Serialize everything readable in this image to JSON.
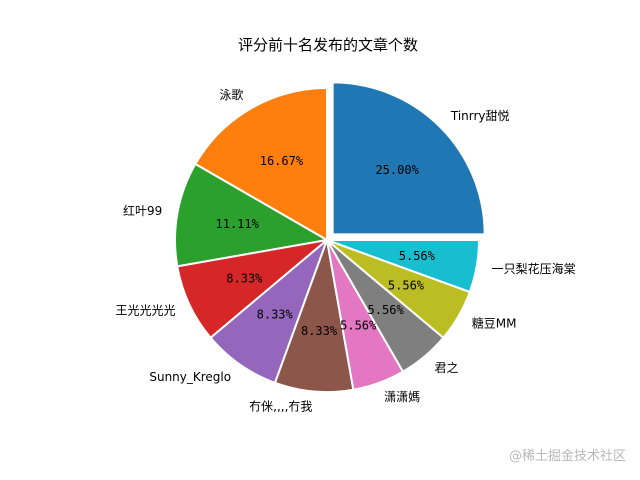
{
  "chart_data": {
    "type": "pie",
    "title": "评分前十名发布的文章个数",
    "start_angle": 0,
    "counterclock": true,
    "explode_index": 0,
    "categories": [
      "Tinrry甜悦",
      "泳歌",
      "红叶99",
      "王光光光光",
      "Sunny_Kreglo",
      "冇侎,,,,冇我",
      "潇潇媽",
      "君之",
      "糖豆MM",
      "一只梨花压海棠"
    ],
    "values": [
      9,
      6,
      4,
      3,
      3,
      3,
      2,
      2,
      2,
      2
    ],
    "percent_labels": [
      "25.00%",
      "16.67%",
      "11.11%",
      "8.33%",
      "8.33%",
      "8.33%",
      "5.56%",
      "5.56%",
      "5.56%",
      "5.56%"
    ],
    "colors": [
      "#1f77b4",
      "#ff7f0e",
      "#2ca02c",
      "#d62728",
      "#9467bd",
      "#8c564b",
      "#e377c2",
      "#7f7f7f",
      "#bcbd22",
      "#17becf"
    ]
  },
  "watermark": "@稀土掘金技术社区"
}
